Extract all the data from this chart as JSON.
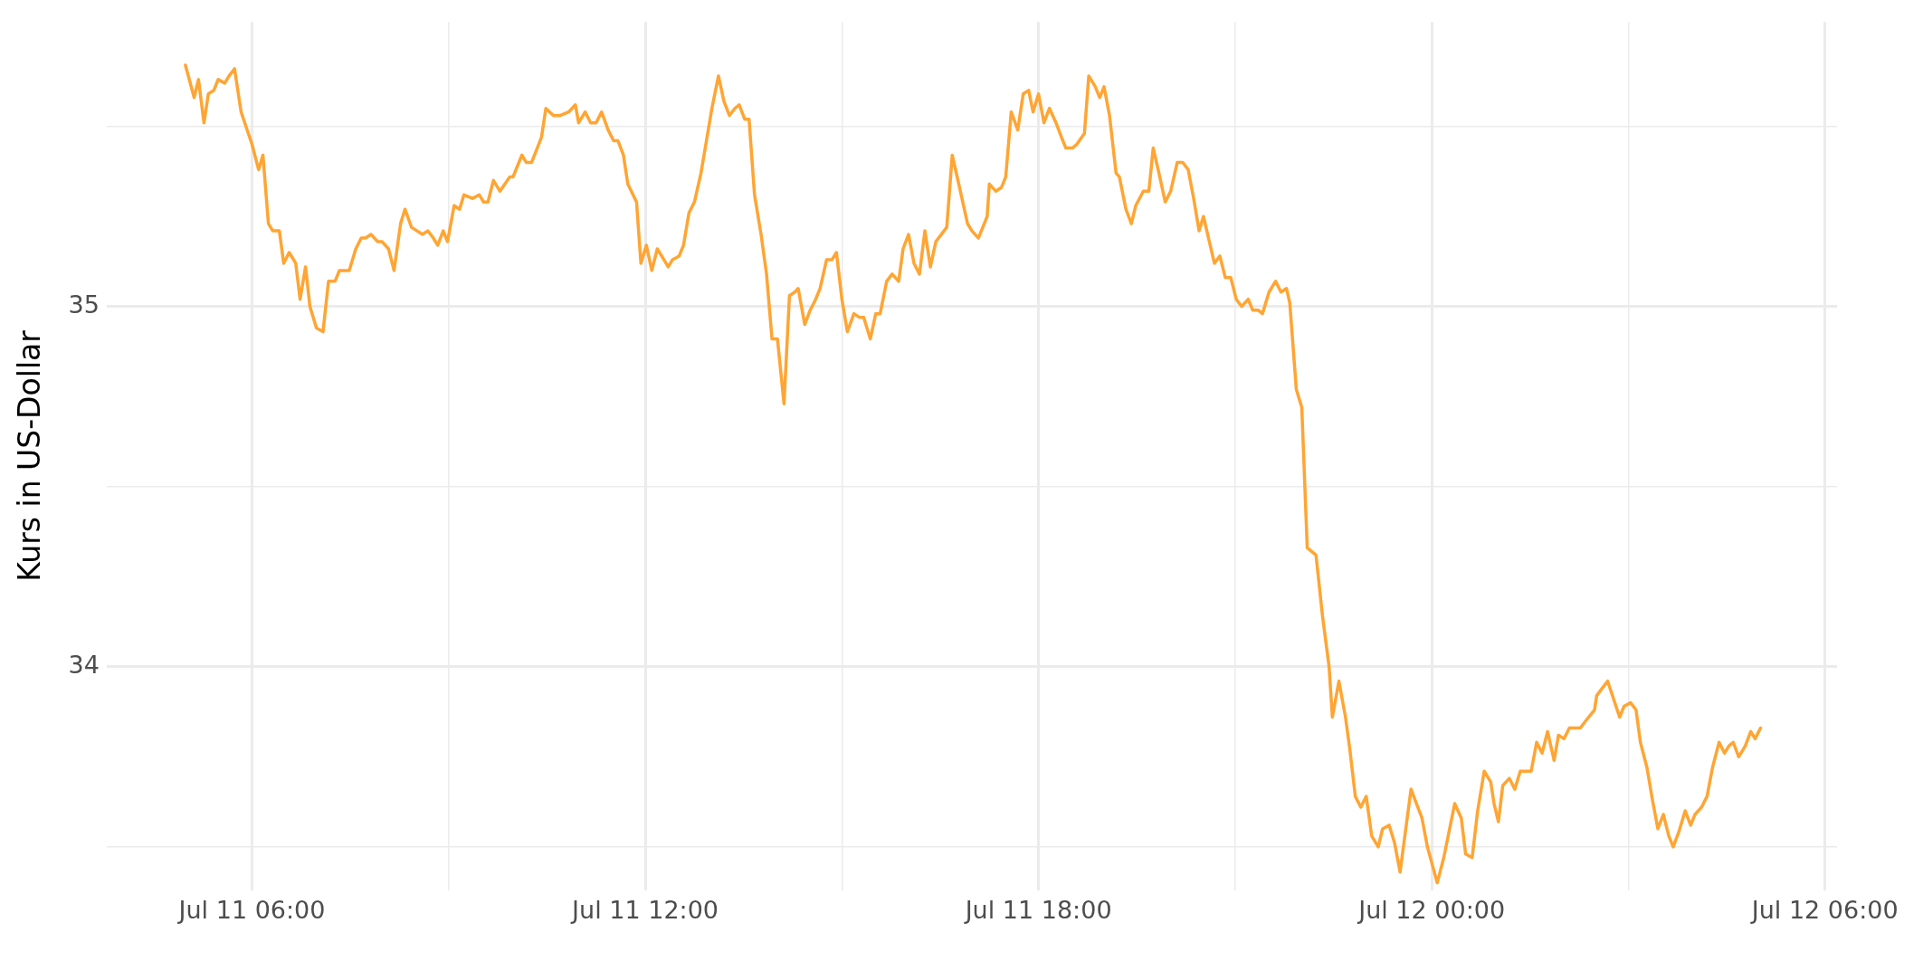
{
  "chart_data": {
    "type": "line",
    "ylabel": "Kurs in US-Dollar",
    "xlim": [
      "--07-11T03:47",
      "--07-12T06:11"
    ],
    "ylim": [
      33.38,
      35.79
    ],
    "xticks": [
      {
        "value": "--07-11T06:00",
        "label": "Jul 11 06:00"
      },
      {
        "value": "--07-11T09:00",
        "label": null
      },
      {
        "value": "--07-11T12:00",
        "label": "Jul 11 12:00"
      },
      {
        "value": "--07-11T15:00",
        "label": null
      },
      {
        "value": "--07-11T18:00",
        "label": "Jul 11 18:00"
      },
      {
        "value": "--07-11T21:00",
        "label": null
      },
      {
        "value": "--07-12T00:00",
        "label": "Jul 12 00:00"
      },
      {
        "value": "--07-12T03:00",
        "label": null
      },
      {
        "value": "--07-12T06:00",
        "label": "Jul 12 06:00"
      }
    ],
    "yticks": [
      {
        "value": 33.5,
        "label": null
      },
      34,
      {
        "value": 34.5,
        "label": null
      },
      35,
      {
        "value": 35.5,
        "label": null
      }
    ],
    "grid": true,
    "marker": "none",
    "line_style": "solid",
    "series": [
      {
        "color": "#ffa533",
        "x": [
          "--07-11T04:59",
          "--07-11T05:07",
          "--07-11T05:11",
          "--07-11T05:16",
          "--07-11T05:20",
          "--07-11T05:25",
          "--07-11T05:29",
          "--07-11T05:35",
          "--07-11T05:39",
          "--07-11T05:44",
          "--07-11T05:50",
          "--07-11T06:00",
          "--07-11T06:06",
          "--07-11T06:10",
          "--07-11T06:15",
          "--07-11T06:19",
          "--07-11T06:25",
          "--07-11T06:29",
          "--07-11T06:34",
          "--07-11T06:40",
          "--07-11T06:44",
          "--07-11T06:49",
          "--07-11T06:53",
          "--07-11T06:59",
          "--07-11T07:05",
          "--07-11T07:10",
          "--07-11T07:16",
          "--07-11T07:20",
          "--07-11T07:29",
          "--07-11T07:35",
          "--07-11T07:40",
          "--07-11T07:44",
          "--07-11T07:49",
          "--07-11T07:55",
          "--07-11T07:59",
          "--07-11T08:05",
          "--07-11T08:10",
          "--07-11T08:16",
          "--07-11T08:20",
          "--07-11T08:26",
          "--07-11T08:31",
          "--07-11T08:36",
          "--07-11T08:41",
          "--07-11T08:46",
          "--07-11T08:50",
          "--07-11T08:55",
          "--07-11T08:59",
          "--07-11T09:05",
          "--07-11T09:10",
          "--07-11T09:14",
          "--07-11T09:22",
          "--07-11T09:28",
          "--07-11T09:32",
          "--07-11T09:36",
          "--07-11T09:41",
          "--07-11T09:47",
          "--07-11T09:56",
          "--07-11T09:59",
          "--07-11T10:07",
          "--07-11T10:11",
          "--07-11T10:16",
          "--07-11T10:25",
          "--07-11T10:29",
          "--07-11T10:36",
          "--07-11T10:42",
          "--07-11T10:50",
          "--07-11T10:56",
          "--07-11T10:59",
          "--07-11T11:05",
          "--07-11T11:10",
          "--07-11T11:15",
          "--07-11T11:20",
          "--07-11T11:26",
          "--07-11T11:31",
          "--07-11T11:35",
          "--07-11T11:40",
          "--07-11T11:44",
          "--07-11T11:52",
          "--07-11T11:56",
          "--07-11T12:01",
          "--07-11T12:06",
          "--07-11T12:11",
          "--07-11T12:15",
          "--07-11T12:21",
          "--07-11T12:25",
          "--07-11T12:31",
          "--07-11T12:35",
          "--07-11T12:40",
          "--07-11T12:45",
          "--07-11T12:51",
          "--07-11T12:56",
          "--07-11T13:01",
          "--07-11T13:07",
          "--07-11T13:12",
          "--07-11T13:17",
          "--07-11T13:22",
          "--07-11T13:26",
          "--07-11T13:31",
          "--07-11T13:35",
          "--07-11T13:40",
          "--07-11T13:46",
          "--07-11T13:51",
          "--07-11T13:56",
          "--07-11T14:01",
          "--07-11T14:07",
          "--07-11T14:12",
          "--07-11T14:17",
          "--07-11T14:20",
          "--07-11T14:26",
          "--07-11T14:31",
          "--07-11T14:36",
          "--07-11T14:40",
          "--07-11T14:46",
          "--07-11T14:51",
          "--07-11T14:55",
          "--07-11T15:00",
          "--07-11T15:05",
          "--07-11T15:11",
          "--07-11T15:16",
          "--07-11T15:20",
          "--07-11T15:26",
          "--07-11T15:31",
          "--07-11T15:35",
          "--07-11T15:41",
          "--07-11T15:46",
          "--07-11T15:52",
          "--07-11T15:56",
          "--07-11T16:01",
          "--07-11T16:06",
          "--07-11T16:11",
          "--07-11T16:16",
          "--07-11T16:21",
          "--07-11T16:26",
          "--07-11T16:31",
          "--07-11T16:36",
          "--07-11T16:41",
          "--07-11T16:47",
          "--07-11T16:55",
          "--07-11T16:59",
          "--07-11T17:05",
          "--07-11T17:13",
          "--07-11T17:15",
          "--07-11T17:21",
          "--07-11T17:26",
          "--07-11T17:30",
          "--07-11T17:35",
          "--07-11T17:41",
          "--07-11T17:46",
          "--07-11T17:51",
          "--07-11T17:55",
          "--07-11T18:00",
          "--07-11T18:05",
          "--07-11T18:10",
          "--07-11T18:16",
          "--07-11T18:21",
          "--07-11T18:25",
          "--07-11T18:31",
          "--07-11T18:35",
          "--07-11T18:42",
          "--07-11T18:46",
          "--07-11T18:52",
          "--07-11T18:56",
          "--07-11T19:00",
          "--07-11T19:05",
          "--07-11T19:11",
          "--07-11T19:14",
          "--07-11T19:20",
          "--07-11T19:25",
          "--07-11T19:29",
          "--07-11T19:36",
          "--07-11T19:41",
          "--07-11T19:45",
          "--07-11T19:51",
          "--07-11T19:56",
          "--07-11T20:01",
          "--07-11T20:07",
          "--07-11T20:12",
          "--07-11T20:17",
          "--07-11T20:22",
          "--07-11T20:27",
          "--07-11T20:31",
          "--07-11T20:41",
          "--07-11T20:46",
          "--07-11T20:51",
          "--07-11T20:56",
          "--07-11T21:01",
          "--07-11T21:06",
          "--07-11T21:12",
          "--07-11T21:16",
          "--07-11T21:21",
          "--07-11T21:25",
          "--07-11T21:31",
          "--07-11T21:37",
          "--07-11T21:42",
          "--07-11T21:47",
          "--07-11T21:50",
          "--07-11T21:56",
          "--07-11T22:01",
          "--07-11T22:06",
          "--07-11T22:10",
          "--07-11T22:14",
          "--07-11T22:20",
          "--07-11T22:26",
          "--07-11T22:29",
          "--07-11T22:35",
          "--07-11T22:41",
          "--07-11T22:45",
          "--07-11T22:50",
          "--07-11T22:55",
          "--07-11T23:00",
          "--07-11T23:05",
          "--07-11T23:11",
          "--07-11T23:15",
          "--07-11T23:21",
          "--07-11T23:26",
          "--07-11T23:31",
          "--07-11T23:41",
          "--07-11T23:46",
          "--07-11T23:51",
          "--07-11T23:56",
          "--07-12T00:05",
          "--07-12T00:11",
          "--07-12T00:21",
          "--07-12T00:27",
          "--07-12T00:31",
          "--07-12T00:37",
          "--07-12T00:42",
          "--07-12T00:48",
          "--07-12T00:54",
          "--07-12T00:57",
          "--07-12T01:01",
          "--07-12T01:05",
          "--07-12T01:11",
          "--07-12T01:16",
          "--07-12T01:21",
          "--07-12T01:26",
          "--07-12T01:31",
          "--07-12T01:36",
          "--07-12T01:41",
          "--07-12T01:46",
          "--07-12T01:52",
          "--07-12T01:56",
          "--07-12T02:01",
          "--07-12T02:06",
          "--07-12T02:11",
          "--07-12T02:16",
          "--07-12T02:21",
          "--07-12T02:29",
          "--07-12T02:31",
          "--07-12T02:36",
          "--07-12T02:41",
          "--07-12T02:52",
          "--07-12T02:56",
          "--07-12T03:02",
          "--07-12T03:07",
          "--07-12T03:11",
          "--07-12T03:17",
          "--07-12T03:22",
          "--07-12T03:27",
          "--07-12T03:32",
          "--07-12T03:37",
          "--07-12T03:41",
          "--07-12T03:46",
          "--07-12T03:52",
          "--07-12T03:57",
          "--07-12T04:01",
          "--07-12T04:07",
          "--07-12T04:12",
          "--07-12T04:17",
          "--07-12T04:23",
          "--07-12T04:28",
          "--07-12T04:32",
          "--07-12T04:36",
          "--07-12T04:41",
          "--07-12T04:47",
          "--07-12T04:52",
          "--07-12T04:56",
          "--07-12T05:01"
        ],
        "values": [
          35.67,
          35.58,
          35.63,
          35.51,
          35.59,
          35.6,
          35.63,
          35.62,
          35.64,
          35.66,
          35.54,
          35.45,
          35.38,
          35.42,
          35.23,
          35.21,
          35.21,
          35.12,
          35.15,
          35.12,
          35.02,
          35.11,
          35.0,
          34.94,
          34.93,
          35.07,
          35.07,
          35.1,
          35.1,
          35.16,
          35.19,
          35.19,
          35.2,
          35.18,
          35.18,
          35.16,
          35.1,
          35.23,
          35.27,
          35.22,
          35.21,
          35.2,
          35.21,
          35.19,
          35.17,
          35.21,
          35.18,
          35.28,
          35.27,
          35.31,
          35.3,
          35.31,
          35.29,
          35.29,
          35.35,
          35.32,
          35.36,
          35.36,
          35.42,
          35.4,
          35.4,
          35.47,
          35.55,
          35.53,
          35.53,
          35.54,
          35.56,
          35.51,
          35.54,
          35.51,
          35.51,
          35.54,
          35.49,
          35.46,
          35.46,
          35.42,
          35.34,
          35.29,
          35.12,
          35.17,
          35.1,
          35.16,
          35.14,
          35.11,
          35.13,
          35.14,
          35.17,
          35.26,
          35.29,
          35.37,
          35.46,
          35.55,
          35.64,
          35.57,
          35.53,
          35.55,
          35.56,
          35.52,
          35.52,
          35.31,
          35.2,
          35.09,
          34.91,
          34.91,
          34.73,
          35.03,
          35.04,
          35.05,
          34.95,
          34.99,
          35.02,
          35.05,
          35.13,
          35.13,
          35.15,
          35.02,
          34.93,
          34.98,
          34.97,
          34.97,
          34.91,
          34.98,
          34.98,
          35.07,
          35.09,
          35.07,
          35.16,
          35.2,
          35.12,
          35.09,
          35.21,
          35.11,
          35.18,
          35.2,
          35.22,
          35.42,
          35.34,
          35.23,
          35.21,
          35.19,
          35.25,
          35.34,
          35.32,
          35.33,
          35.36,
          35.54,
          35.49,
          35.59,
          35.6,
          35.54,
          35.59,
          35.51,
          35.55,
          35.51,
          35.47,
          35.44,
          35.44,
          35.45,
          35.48,
          35.64,
          35.61,
          35.58,
          35.61,
          35.53,
          35.37,
          35.36,
          35.27,
          35.23,
          35.28,
          35.32,
          35.32,
          35.44,
          35.36,
          35.29,
          35.32,
          35.4,
          35.4,
          35.38,
          35.3,
          35.21,
          35.25,
          35.12,
          35.14,
          35.08,
          35.08,
          35.02,
          35.0,
          35.02,
          34.99,
          34.99,
          34.98,
          35.04,
          35.07,
          35.04,
          35.05,
          35.01,
          34.77,
          34.72,
          34.33,
          34.32,
          34.31,
          34.14,
          34.0,
          33.86,
          33.96,
          33.86,
          33.77,
          33.64,
          33.61,
          33.64,
          33.53,
          33.5,
          33.55,
          33.56,
          33.51,
          33.43,
          33.66,
          33.62,
          33.58,
          33.5,
          33.4,
          33.47,
          33.62,
          33.58,
          33.48,
          33.47,
          33.6,
          33.71,
          33.68,
          33.62,
          33.57,
          33.67,
          33.69,
          33.66,
          33.71,
          33.71,
          33.71,
          33.79,
          33.76,
          33.82,
          33.74,
          33.81,
          33.8,
          33.83,
          33.83,
          33.83,
          33.85,
          33.88,
          33.92,
          33.94,
          33.96,
          33.86,
          33.89,
          33.9,
          33.88,
          33.79,
          33.72,
          33.63,
          33.55,
          33.59,
          33.53,
          33.5,
          33.54,
          33.6,
          33.56,
          33.59,
          33.61,
          33.64,
          33.72,
          33.79,
          33.76,
          33.78,
          33.79,
          33.75,
          33.78,
          33.82,
          33.8,
          33.83
        ]
      }
    ]
  }
}
